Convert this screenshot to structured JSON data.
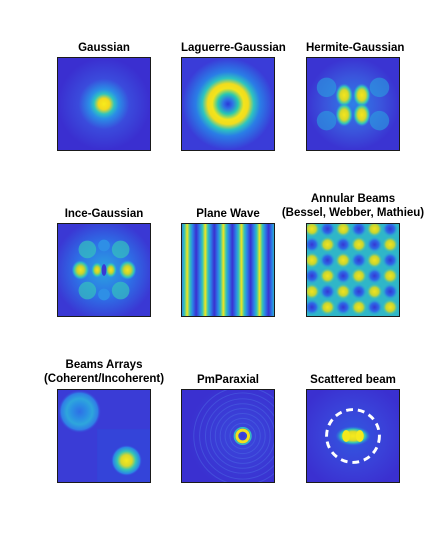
{
  "figure": {
    "panels": [
      {
        "id": "gaussian",
        "title_lines": [
          "Gaussian"
        ]
      },
      {
        "id": "laguerre",
        "title_lines": [
          "Laguerre-Gaussian"
        ]
      },
      {
        "id": "hermite",
        "title_lines": [
          "Hermite-Gaussian"
        ]
      },
      {
        "id": "ince",
        "title_lines": [
          "Ince-Gaussian"
        ]
      },
      {
        "id": "plane",
        "title_lines": [
          "Plane Wave"
        ]
      },
      {
        "id": "annular",
        "title_lines": [
          "Annular Beams",
          "(Bessel, Webber, Mathieu)"
        ]
      },
      {
        "id": "arrays",
        "title_lines": [
          "Beams Arrays",
          "(Coherent/Incoherent)"
        ]
      },
      {
        "id": "pmparaxial",
        "title_lines": [
          "PmParaxial"
        ]
      },
      {
        "id": "scattered",
        "title_lines": [
          "Scattered beam"
        ]
      }
    ]
  },
  "colors": {
    "background": "#3a2fd0",
    "low": "#3a2fd0",
    "mid": "#1fa8d8",
    "high": "#f2ea1c",
    "scatter_ring": "#ffffff"
  }
}
